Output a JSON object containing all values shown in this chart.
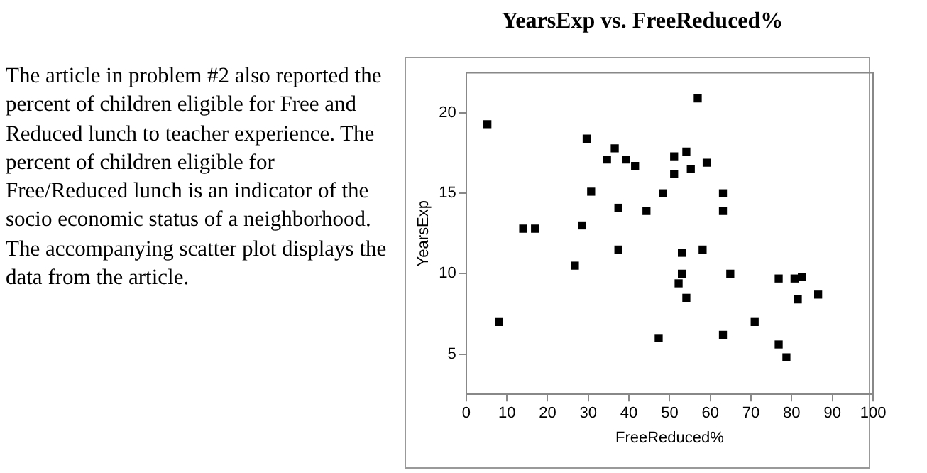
{
  "chart_data": {
    "type": "scatter",
    "title": "YearsExp vs. FreeReduced%",
    "xlabel": "FreeReduced%",
    "ylabel": "YearsExp",
    "annotations": [
      "The article in problem #2 also reported the percent of children eligible for Free and Reduced lunch to teacher experience.  The percent of children eligible for Free/Reduced lunch is an indicator of the socio economic status of a neighborhood.  The accompanying scatter plot displays the data from the article."
    ],
    "series": [
      {
        "color": "#000000",
        "x": [
          5.2,
          8.0,
          14.0,
          16.9,
          29.6,
          28.4,
          26.7,
          30.7,
          34.6,
          36.5,
          39.3,
          41.5,
          37.4,
          37.4,
          44.3,
          48.3,
          47.3,
          56.9,
          51.1,
          54.1,
          51.1,
          55.2,
          59.1,
          63.1,
          63.1,
          58.1,
          53.0,
          53.0,
          52.2,
          54.1,
          64.9,
          76.8,
          80.7,
          82.5,
          81.5,
          86.5,
          70.9,
          63.1,
          76.8,
          78.7
        ],
        "values": [
          19.3,
          7.0,
          12.8,
          12.8,
          18.4,
          13.0,
          10.5,
          15.1,
          17.1,
          17.8,
          17.1,
          16.7,
          14.1,
          11.5,
          13.9,
          15.0,
          6.0,
          20.9,
          17.3,
          17.6,
          16.2,
          16.5,
          16.9,
          15.0,
          13.9,
          11.5,
          11.3,
          10.0,
          9.4,
          8.5,
          10.0,
          9.7,
          9.7,
          9.8,
          8.4,
          8.7,
          7.0,
          6.2,
          5.6,
          4.8
        ]
      }
    ],
    "xlim": [
      0,
      100
    ],
    "xticks": [
      0,
      10,
      20,
      30,
      40,
      50,
      60,
      70,
      80,
      90,
      100
    ],
    "ylim": [
      2.5,
      22.5
    ],
    "yticks": [
      5,
      10,
      15,
      20
    ],
    "grid": false,
    "legend": false,
    "marker": "square"
  }
}
